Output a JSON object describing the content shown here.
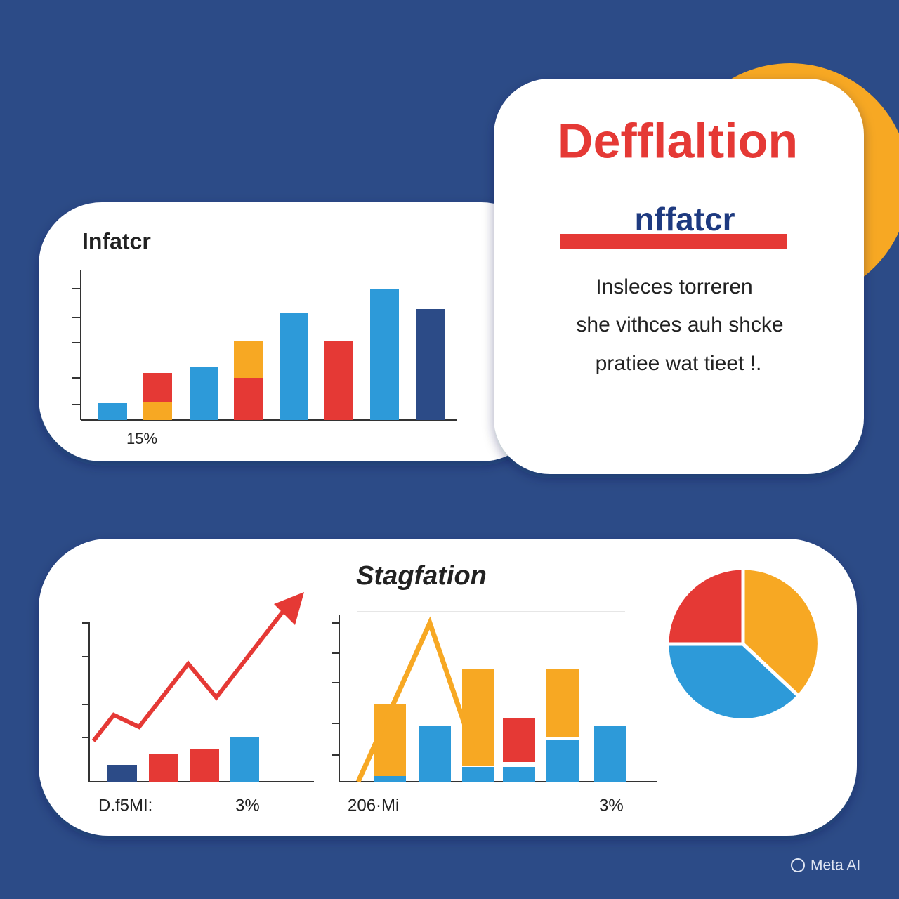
{
  "inflation_card": {
    "title": "Infatcr",
    "label": "15%"
  },
  "deflation_card": {
    "title": "Defflaltion",
    "subtitle": "nffatcr",
    "lines": [
      "Insleces torreren",
      "she vithces auh shcke",
      "pratiee wat tieet !."
    ]
  },
  "stagflation_card": {
    "title": "Stagfation",
    "left_label": "D.f5MI:",
    "left_value": "3%",
    "middle_label": "206·Mi",
    "middle_value": "3%"
  },
  "watermark": "Meta AI"
}
